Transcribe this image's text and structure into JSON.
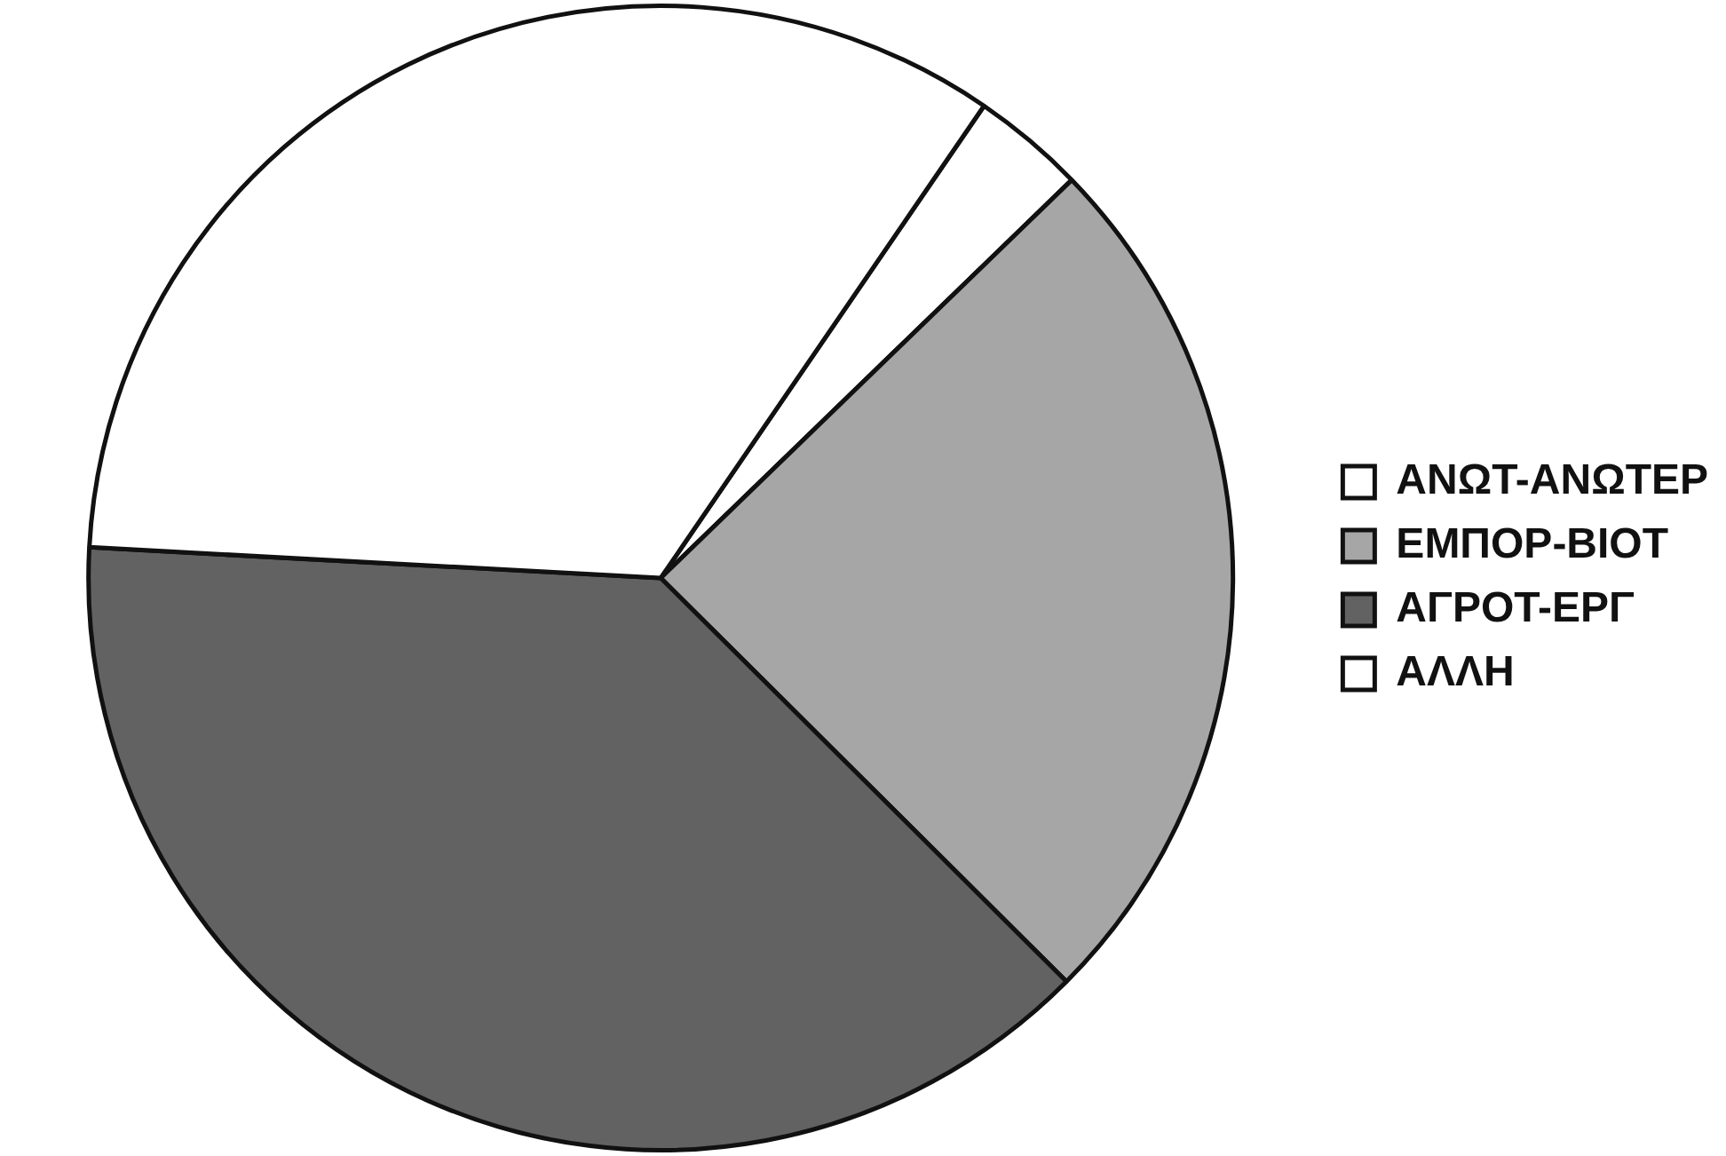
{
  "chart_data": {
    "type": "pie",
    "categories": [
      "ΑΝΩΤ-ΑΝΩΤΕΡ",
      "ΕΜΠΟΡ-ΒΙΟΤ",
      "ΑΓΡΟΤ-ΕΡΓ",
      "ΑΛΛΗ"
    ],
    "values": [
      3.2,
      24.7,
      38.4,
      33.7
    ],
    "colors": [
      "#ffffff",
      "#a6a6a6",
      "#626262",
      "#ffffff"
    ],
    "legend": "right"
  }
}
